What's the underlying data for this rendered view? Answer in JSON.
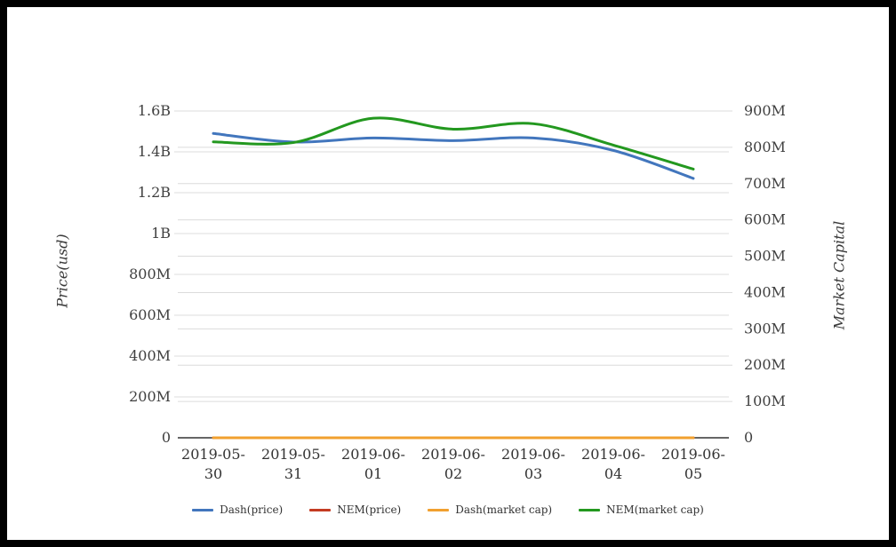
{
  "chart_data": {
    "type": "line",
    "title": "",
    "categories": [
      "2019-05-30",
      "2019-05-31",
      "2019-06-01",
      "2019-06-02",
      "2019-06-03",
      "2019-06-04",
      "2019-06-05"
    ],
    "left_axis": {
      "title": "Price(usd)",
      "ticks": [
        "0",
        "200M",
        "400M",
        "600M",
        "800M",
        "1B",
        "1.2B",
        "1.4B",
        "1.6B"
      ],
      "tick_values_m": [
        0,
        200,
        400,
        600,
        800,
        1000,
        1200,
        1400,
        1600
      ],
      "max_m": 1600
    },
    "right_axis": {
      "title": "Market Capital",
      "ticks": [
        "0",
        "100M",
        "200M",
        "300M",
        "400M",
        "500M",
        "600M",
        "700M",
        "800M",
        "900M"
      ],
      "tick_values_m": [
        0,
        100,
        200,
        300,
        400,
        500,
        600,
        700,
        800,
        900
      ],
      "max_m": 900
    },
    "grid": true,
    "legend_position": "bottom",
    "smooth": true,
    "series": [
      {
        "name": "Dash(price)",
        "axis": "left",
        "color": "#4276bd",
        "values_m": [
          1490,
          1448,
          1468,
          1455,
          1468,
          1407,
          1270
        ]
      },
      {
        "name": "NEM(price)",
        "axis": "left",
        "color": "#c43b22",
        "values_m": [
          0,
          0,
          0,
          0,
          0,
          0,
          0
        ]
      },
      {
        "name": "Dash(market cap)",
        "axis": "left",
        "color": "#f1a02f",
        "values_m": [
          0,
          0,
          0,
          0,
          0,
          0,
          0
        ]
      },
      {
        "name": "NEM(market cap)",
        "axis": "right",
        "color": "#23981f",
        "values_m": [
          815,
          813,
          880,
          850,
          865,
          806,
          740
        ]
      }
    ],
    "colors": {
      "gridline": "#dcdcdc",
      "axis_line": "#333333",
      "tick_text": "#3f3f3f",
      "label_text": "#333333",
      "frame": "#000000",
      "background": "#ffffff"
    }
  }
}
